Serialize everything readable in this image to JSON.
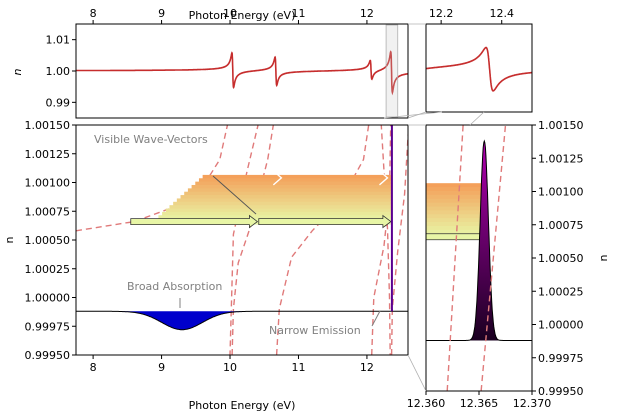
{
  "chart_data": [
    {
      "panel": "top-left",
      "type": "line",
      "top_xlabel": "Photon Energy (eV)",
      "ylabel": "n",
      "xlim": [
        7.75,
        12.6
      ],
      "ylim": [
        0.985,
        1.015
      ],
      "xticks": [
        "8",
        "9",
        "10",
        "11",
        "12"
      ],
      "yticks": [
        "0.99",
        "1.00",
        "1.01"
      ],
      "resonances": [
        {
          "x": 10.04,
          "amp": 0.011
        },
        {
          "x": 10.67,
          "amp": 0.009
        },
        {
          "x": 12.06,
          "amp": 0.006
        },
        {
          "x": 12.36,
          "amp": 0.013
        }
      ],
      "series": [
        {
          "color": "#c62d2d"
        }
      ]
    },
    {
      "panel": "top-right",
      "type": "line",
      "top_xlabel": "",
      "xlim": [
        12.15,
        12.5
      ],
      "xticks": [
        "12.2",
        "12.4"
      ],
      "series": [
        {
          "color": "#c62d2d"
        }
      ]
    },
    {
      "panel": "bottom-left",
      "type": "line",
      "xlabel": "Photon Energy (eV)",
      "ylabel": "n",
      "xlim": [
        7.75,
        12.6
      ],
      "ylim": [
        0.9995,
        1.0015
      ],
      "xticks": [
        "8",
        "9",
        "10",
        "11",
        "12"
      ],
      "yticks": [
        "0.99950",
        "0.99975",
        "1.00000",
        "1.00025",
        "1.00050",
        "1.00075",
        "1.00100",
        "1.00125",
        "1.00150"
      ],
      "baseline_n": 0.99988,
      "absorption": {
        "center": 9.3,
        "width": 0.42,
        "depth": 0.00016,
        "color": "#0000cc"
      },
      "emission": {
        "x": 12.365,
        "color": "#5a0090"
      },
      "wave_vectors": {
        "n_low": 1.00066,
        "n_high": 1.00104,
        "segments": [
          [
            8.55,
            10.4
          ],
          [
            10.42,
            12.35
          ]
        ],
        "colors_top": "#f4a05a",
        "colors_bottom": "#e8f6a6"
      },
      "annotations": {
        "visible": "Visible Wave-Vectors",
        "absorption": "Broad Absorption",
        "emission": "Narrow Emission"
      }
    },
    {
      "panel": "bottom-right",
      "type": "area",
      "xlabel": "",
      "ylabel": "n",
      "xlim": [
        12.36,
        12.37
      ],
      "ylim": [
        0.9995,
        1.0015
      ],
      "xticks": [
        "12.360",
        "12.365",
        "12.370"
      ],
      "yticks": [
        "0.99950",
        "0.99975",
        "1.00000",
        "1.00025",
        "1.00050",
        "1.00075",
        "1.00100",
        "1.00125",
        "1.00150"
      ],
      "emission_peak": {
        "center": 12.3655,
        "width": 0.00055,
        "peak_n": 1.00138,
        "base_n": 0.99988
      },
      "colors": {
        "top": "#b000b0",
        "bottom": "#1a0020"
      }
    }
  ]
}
